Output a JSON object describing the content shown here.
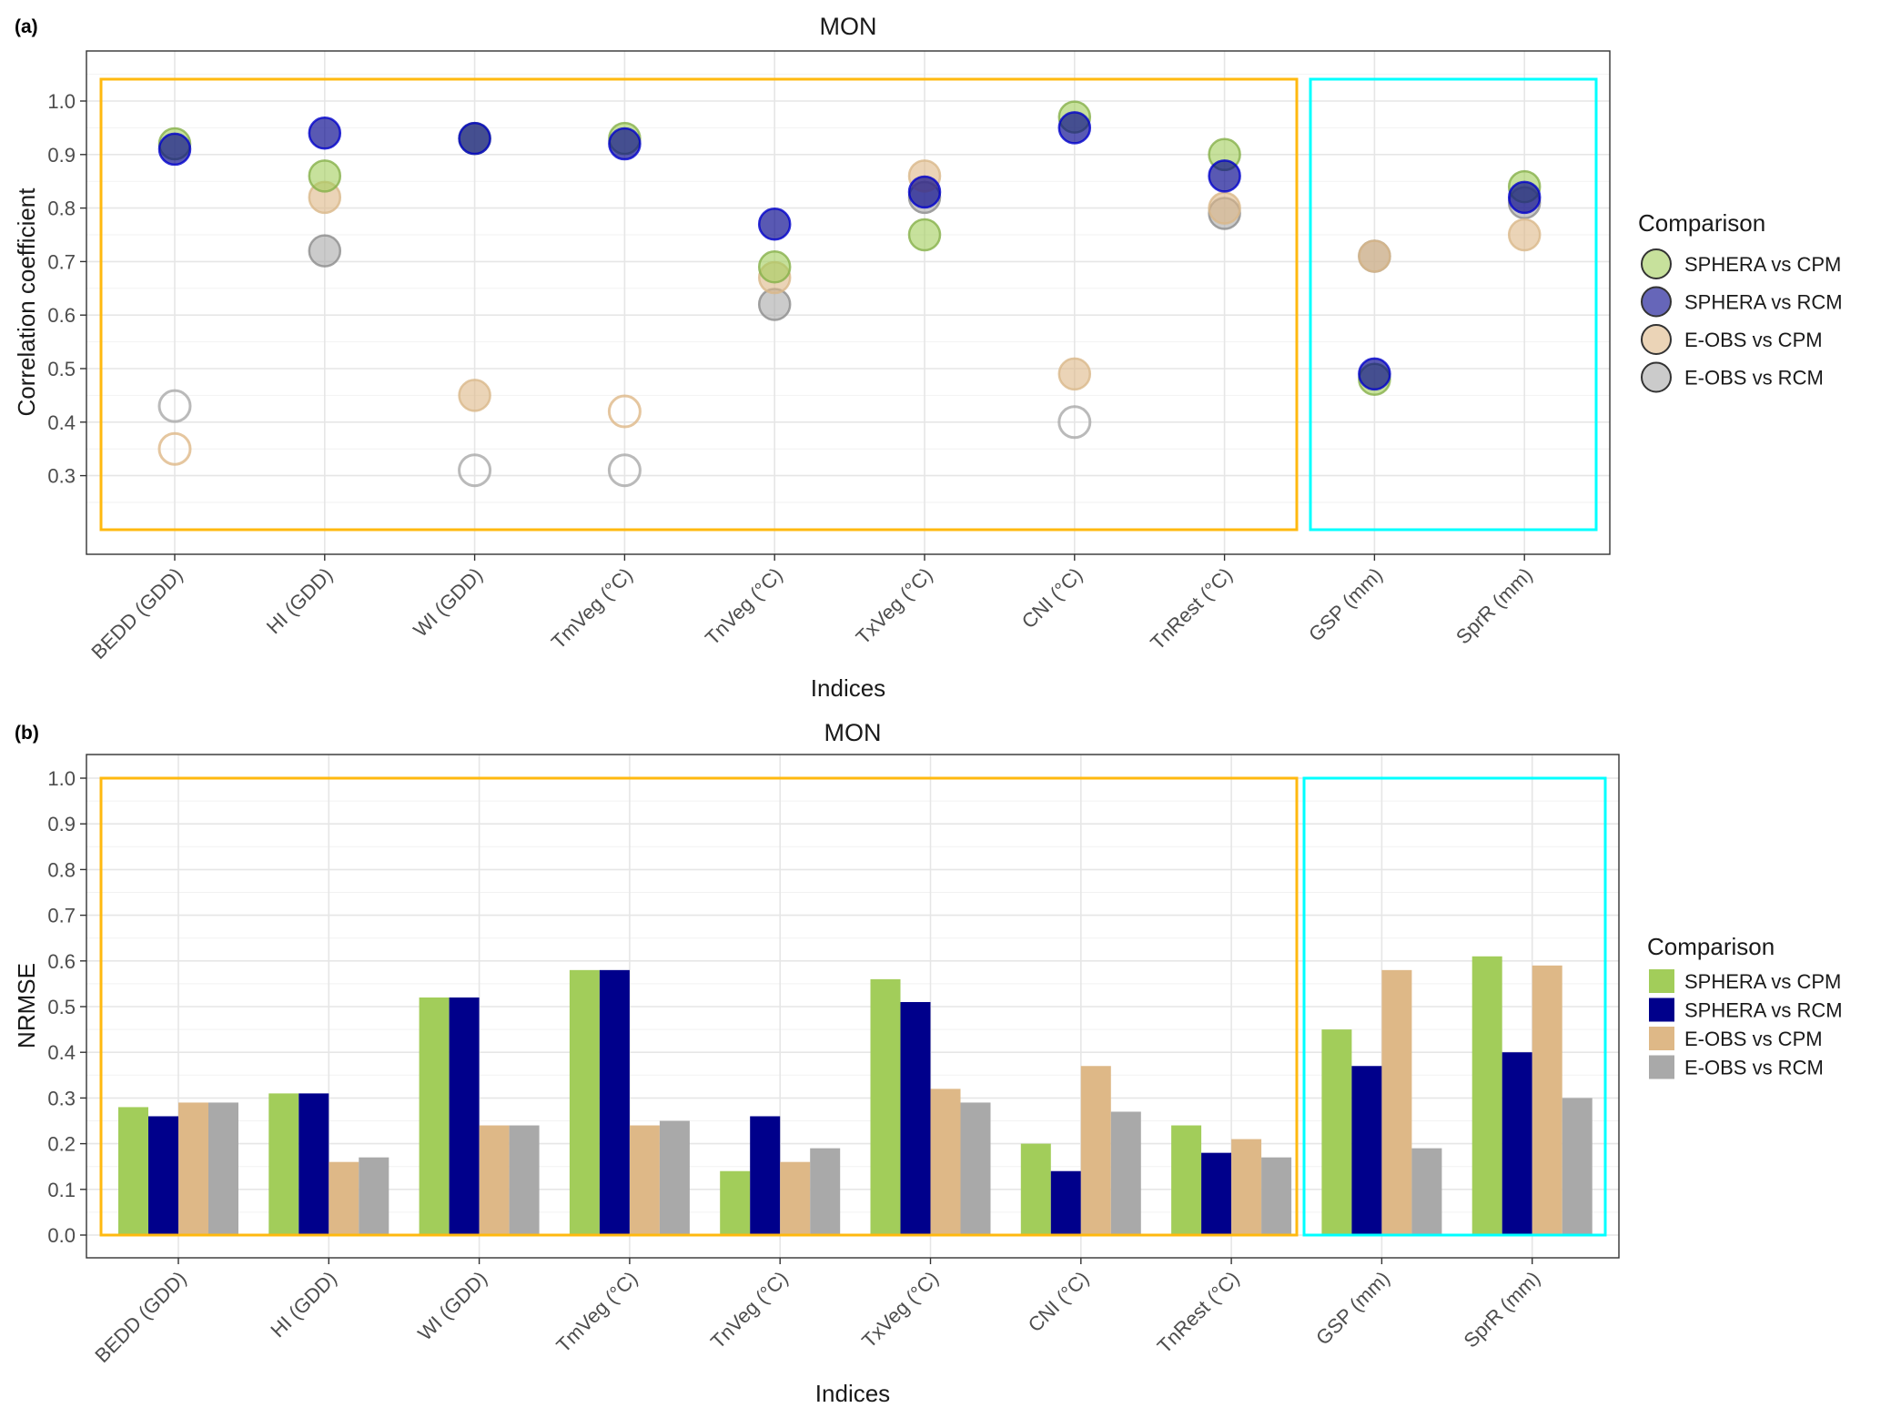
{
  "colors": {
    "sphera_cpm": "#a2cd5a",
    "sphera_rcm": "#00008b",
    "eobs_cpm": "#deb887",
    "eobs_rcm": "#a9a9a9",
    "temperature_box": "#ffb90f",
    "precip_box": "#00ffff"
  },
  "legend": {
    "title": "Comparison",
    "entries": [
      "SPHERA vs CPM",
      "SPHERA vs RCM",
      "E-OBS vs CPM",
      "E-OBS vs RCM"
    ],
    "placement": "right"
  },
  "chart_data": [
    {
      "panel_label": "(a)",
      "type": "scatter",
      "title": "MON",
      "xlabel": "Indices",
      "ylabel": "Correlation coefficient",
      "categories": [
        "BEDD (GDD)",
        "HI (GDD)",
        "WI (GDD)",
        "TmVeg (°C)",
        "TnVeg (°C)",
        "TxVeg (°C)",
        "CNI (°C)",
        "TnRest (°C)",
        "GSP (mm)",
        "SprR (mm)"
      ],
      "ylim": [
        0.2,
        1.06
      ],
      "yticks": [
        "0.3",
        "0.4",
        "0.5",
        "0.6",
        "0.7",
        "0.8",
        "0.9",
        "1.0"
      ],
      "grid": true,
      "series": [
        {
          "name": "SPHERA vs CPM",
          "values": [
            0.92,
            0.86,
            0.93,
            0.93,
            0.69,
            0.75,
            0.97,
            0.9,
            0.48,
            0.84
          ],
          "filled": [
            true,
            true,
            true,
            true,
            true,
            true,
            true,
            true,
            true,
            true
          ]
        },
        {
          "name": "SPHERA vs RCM",
          "values": [
            0.91,
            0.94,
            0.93,
            0.92,
            0.77,
            0.83,
            0.95,
            0.86,
            0.49,
            0.82
          ],
          "filled": [
            true,
            true,
            true,
            true,
            true,
            true,
            true,
            true,
            true,
            true
          ]
        },
        {
          "name": "E-OBS vs CPM",
          "values": [
            0.35,
            0.82,
            0.45,
            0.42,
            0.67,
            0.86,
            0.49,
            0.8,
            0.71,
            0.75
          ],
          "filled": [
            false,
            true,
            true,
            false,
            true,
            true,
            true,
            true,
            true,
            true
          ]
        },
        {
          "name": "E-OBS vs RCM",
          "values": [
            0.43,
            0.72,
            0.31,
            0.31,
            0.62,
            0.82,
            0.4,
            0.79,
            0.71,
            0.81
          ],
          "filled": [
            false,
            true,
            false,
            false,
            true,
            true,
            false,
            true,
            true,
            true
          ]
        }
      ]
    },
    {
      "panel_label": "(b)",
      "type": "bar",
      "title": "MON",
      "xlabel": "Indices",
      "ylabel": "NRMSE",
      "categories": [
        "BEDD (GDD)",
        "HI (GDD)",
        "WI (GDD)",
        "TmVeg (°C)",
        "TnVeg (°C)",
        "TxVeg (°C)",
        "CNI (°C)",
        "TnRest (°C)",
        "GSP (mm)",
        "SprR (mm)"
      ],
      "ylim": [
        -0.05,
        1.05
      ],
      "yticks": [
        "0.0",
        "0.1",
        "0.2",
        "0.3",
        "0.4",
        "0.5",
        "0.6",
        "0.7",
        "0.8",
        "0.9",
        "1.0"
      ],
      "grid": true,
      "series": [
        {
          "name": "SPHERA vs CPM",
          "values": [
            0.28,
            0.31,
            0.52,
            0.58,
            0.14,
            0.56,
            0.2,
            0.24,
            0.45,
            0.61
          ]
        },
        {
          "name": "SPHERA vs RCM",
          "values": [
            0.26,
            0.31,
            0.52,
            0.58,
            0.26,
            0.51,
            0.14,
            0.18,
            0.37,
            0.4
          ]
        },
        {
          "name": "E-OBS vs CPM",
          "values": [
            0.29,
            0.16,
            0.24,
            0.24,
            0.16,
            0.32,
            0.37,
            0.21,
            0.58,
            0.59
          ]
        },
        {
          "name": "E-OBS vs RCM",
          "values": [
            0.29,
            0.17,
            0.24,
            0.25,
            0.19,
            0.29,
            0.27,
            0.17,
            0.19,
            0.3
          ]
        }
      ]
    }
  ]
}
